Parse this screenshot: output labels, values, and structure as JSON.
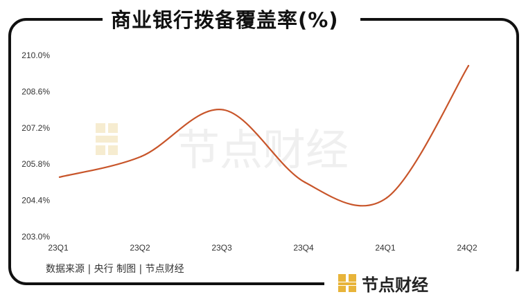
{
  "title": "商业银行拨备覆盖率(%)",
  "source": "数据来源 | 央行    制图 | 节点财经",
  "brand": "节点财经",
  "watermark": "节点财经",
  "colors": {
    "line": "#c8552a",
    "frame": "#111111",
    "logo": "#e8b43a"
  },
  "chart_data": {
    "type": "line",
    "title": "商业银行拨备覆盖率(%)",
    "categories": [
      "23Q1",
      "23Q2",
      "23Q3",
      "23Q4",
      "24Q1",
      "24Q2"
    ],
    "series": [
      {
        "values": [
          205.3,
          206.1,
          207.9,
          205.1,
          204.5,
          209.6
        ]
      }
    ],
    "yticks": [
      "203.0%",
      "204.4%",
      "205.8%",
      "207.2%",
      "208.6%",
      "210.0%"
    ],
    "ylim": [
      203.0,
      210.0
    ],
    "grid": false,
    "legend": "none"
  }
}
